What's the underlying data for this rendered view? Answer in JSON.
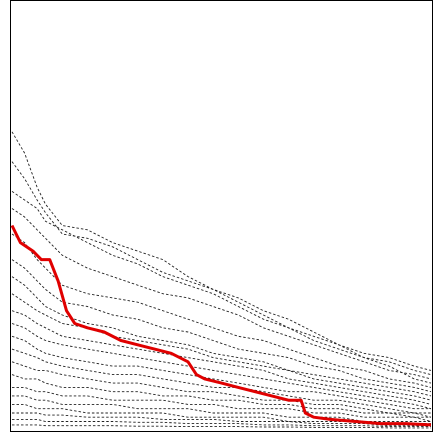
{
  "chart_data": {
    "type": "line",
    "title": "",
    "xlabel": "",
    "ylabel": "",
    "xlim": [
      0,
      100
    ],
    "ylim": [
      0,
      100
    ],
    "grid": false,
    "legend": "none",
    "tick_labels_shown": false,
    "colors": {
      "highlight": "#e00000",
      "background": "#222222",
      "frame": "#000000"
    },
    "highlight": {
      "x": [
        0,
        2,
        5,
        7,
        9,
        11,
        13,
        15,
        18,
        22,
        26,
        30,
        34,
        38,
        42,
        44,
        46,
        50,
        54,
        58,
        62,
        66,
        69,
        70,
        72,
        76,
        82,
        88,
        94,
        100
      ],
      "y": [
        48,
        44,
        42,
        40,
        40,
        35,
        28,
        25,
        24,
        23,
        21,
        20,
        19,
        18,
        16,
        13,
        12,
        11,
        10,
        9,
        8,
        7,
        7,
        4,
        3,
        2.5,
        2,
        1.5,
        1.5,
        1.2
      ]
    },
    "background_series": [
      {
        "x": [
          0,
          3,
          6,
          8,
          12,
          18,
          24,
          30,
          36,
          42,
          48,
          54,
          60,
          66,
          72,
          78,
          84,
          90,
          96,
          100
        ],
        "y": [
          70,
          65,
          57,
          53,
          48,
          47,
          44,
          42,
          40,
          36,
          33,
          31,
          28,
          26,
          23,
          20,
          18,
          17,
          15,
          14
        ]
      },
      {
        "x": [
          0,
          3,
          6,
          8,
          12,
          18,
          24,
          30,
          36,
          42,
          48,
          54,
          60,
          66,
          72,
          78,
          84,
          90,
          96,
          100
        ],
        "y": [
          63,
          59,
          54,
          51,
          46,
          45,
          43,
          40,
          37,
          35,
          33,
          30,
          27,
          24,
          22,
          20,
          17,
          15,
          12,
          11
        ]
      },
      {
        "x": [
          0,
          3,
          6,
          8,
          12,
          18,
          24,
          30,
          36,
          42,
          48,
          54,
          60,
          66,
          72,
          78,
          84,
          90,
          96,
          100
        ],
        "y": [
          56,
          54,
          52,
          49,
          47,
          44,
          41,
          39,
          36,
          34,
          32,
          29,
          26,
          24,
          21,
          19,
          17,
          16,
          14,
          13
        ]
      },
      {
        "x": [
          0,
          3,
          6,
          8,
          12,
          18,
          24,
          30,
          36,
          42,
          48,
          54,
          60,
          66,
          72,
          78,
          84,
          90,
          96,
          100
        ],
        "y": [
          52,
          50,
          47,
          45,
          41,
          38,
          36,
          34,
          32,
          31,
          29,
          27,
          24,
          22,
          20,
          18,
          16,
          14,
          13,
          12
        ]
      },
      {
        "x": [
          0,
          3,
          6,
          8,
          12,
          18,
          24,
          30,
          36,
          42,
          48,
          54,
          60,
          66,
          72,
          78,
          84,
          90,
          96,
          100
        ],
        "y": [
          46,
          44,
          40,
          38,
          34,
          32,
          31,
          30,
          28,
          26,
          24,
          22,
          21,
          19,
          17,
          15,
          14,
          12,
          11,
          10
        ]
      },
      {
        "x": [
          0,
          3,
          6,
          8,
          12,
          18,
          24,
          30,
          36,
          42,
          48,
          54,
          60,
          66,
          72,
          78,
          84,
          90,
          96,
          100
        ],
        "y": [
          40,
          38,
          35,
          33,
          30,
          29,
          27,
          26,
          24,
          23,
          21,
          19,
          18,
          17,
          15,
          14,
          12,
          11,
          10,
          9
        ]
      },
      {
        "x": [
          0,
          3,
          6,
          8,
          12,
          18,
          24,
          30,
          36,
          42,
          48,
          54,
          60,
          66,
          72,
          78,
          84,
          90,
          96,
          100
        ],
        "y": [
          36,
          34,
          31,
          29,
          27,
          25,
          24,
          22,
          21,
          20,
          18,
          17,
          16,
          14,
          13,
          12,
          11,
          10,
          9,
          8
        ]
      },
      {
        "x": [
          0,
          3,
          6,
          8,
          12,
          18,
          24,
          30,
          36,
          42,
          48,
          54,
          60,
          66,
          72,
          78,
          84,
          90,
          96,
          100
        ],
        "y": [
          32,
          30,
          28,
          27,
          25,
          24,
          22,
          21,
          20,
          19,
          17,
          16,
          15,
          14,
          12,
          11,
          10,
          9,
          8,
          7
        ]
      },
      {
        "x": [
          0,
          3,
          6,
          8,
          12,
          18,
          24,
          30,
          36,
          42,
          48,
          54,
          60,
          66,
          72,
          78,
          84,
          90,
          96,
          100
        ],
        "y": [
          28,
          27,
          25,
          24,
          22,
          21,
          20,
          19,
          18,
          17,
          16,
          15,
          14,
          12,
          11,
          10,
          9,
          8,
          7,
          6
        ]
      },
      {
        "x": [
          0,
          3,
          6,
          8,
          12,
          18,
          24,
          30,
          36,
          42,
          48,
          54,
          60,
          66,
          72,
          78,
          84,
          90,
          96,
          100
        ],
        "y": [
          25,
          24,
          22,
          21,
          20,
          19,
          18,
          17,
          16,
          15,
          14,
          13,
          12,
          11,
          10,
          9,
          8,
          7,
          6,
          5
        ]
      },
      {
        "x": [
          0,
          3,
          6,
          8,
          12,
          18,
          24,
          30,
          36,
          42,
          48,
          54,
          60,
          66,
          72,
          78,
          84,
          90,
          96,
          100
        ],
        "y": [
          22,
          21,
          19,
          18,
          17,
          16,
          15,
          15,
          14,
          13,
          12,
          11,
          10,
          9,
          9,
          8,
          7,
          6,
          5,
          5
        ]
      },
      {
        "x": [
          0,
          3,
          6,
          8,
          12,
          18,
          24,
          30,
          36,
          42,
          48,
          54,
          60,
          66,
          72,
          78,
          84,
          90,
          96,
          100
        ],
        "y": [
          19,
          18,
          17,
          16,
          15,
          14,
          13,
          13,
          12,
          11,
          10,
          10,
          9,
          8,
          7,
          7,
          6,
          5,
          4,
          4
        ]
      },
      {
        "x": [
          0,
          3,
          6,
          8,
          12,
          18,
          24,
          30,
          36,
          42,
          48,
          54,
          60,
          66,
          72,
          78,
          84,
          90,
          96,
          100
        ],
        "y": [
          16,
          15,
          14,
          14,
          13,
          12,
          11,
          11,
          10,
          9,
          9,
          8,
          7,
          7,
          6,
          6,
          5,
          4,
          4,
          3
        ]
      },
      {
        "x": [
          0,
          3,
          6,
          8,
          12,
          18,
          24,
          30,
          36,
          42,
          48,
          54,
          60,
          66,
          72,
          78,
          84,
          90,
          96,
          100
        ],
        "y": [
          13,
          12,
          12,
          11,
          10,
          10,
          9,
          9,
          8,
          8,
          7,
          7,
          6,
          6,
          5,
          5,
          4,
          4,
          3,
          3
        ]
      },
      {
        "x": [
          0,
          3,
          6,
          8,
          12,
          18,
          24,
          30,
          36,
          42,
          48,
          54,
          60,
          66,
          72,
          78,
          84,
          90,
          96,
          100
        ],
        "y": [
          10,
          10,
          9,
          9,
          8,
          8,
          7,
          7,
          7,
          6,
          6,
          5,
          5,
          5,
          4,
          4,
          3,
          3,
          3,
          2
        ]
      },
      {
        "x": [
          0,
          3,
          6,
          8,
          12,
          18,
          24,
          30,
          36,
          42,
          48,
          54,
          60,
          66,
          72,
          78,
          84,
          90,
          96,
          100
        ],
        "y": [
          8,
          8,
          7,
          7,
          6,
          6,
          6,
          5,
          5,
          5,
          4,
          4,
          4,
          3,
          3,
          3,
          2,
          2,
          2,
          2
        ]
      },
      {
        "x": [
          0,
          3,
          6,
          8,
          12,
          18,
          24,
          30,
          36,
          42,
          48,
          54,
          60,
          66,
          72,
          78,
          84,
          90,
          96,
          100
        ],
        "y": [
          6,
          6,
          5,
          5,
          5,
          4,
          4,
          4,
          4,
          3,
          3,
          3,
          3,
          2,
          2,
          2,
          2,
          1.5,
          1.5,
          1.5
        ]
      },
      {
        "x": [
          0,
          3,
          6,
          8,
          12,
          18,
          24,
          30,
          36,
          42,
          48,
          54,
          60,
          66,
          72,
          78,
          84,
          90,
          96,
          100
        ],
        "y": [
          4,
          4,
          4,
          3.5,
          3.5,
          3,
          3,
          3,
          2.5,
          2.5,
          2.5,
          2,
          2,
          2,
          1.5,
          1.5,
          1.5,
          1,
          1,
          1
        ]
      },
      {
        "x": [
          0,
          3,
          6,
          8,
          12,
          18,
          24,
          30,
          36,
          42,
          48,
          54,
          60,
          66,
          72,
          78,
          84,
          90,
          96,
          100
        ],
        "y": [
          2.5,
          2.5,
          2.5,
          2,
          2,
          2,
          2,
          1.8,
          1.8,
          1.5,
          1.5,
          1.5,
          1.2,
          1.2,
          1,
          1,
          1,
          0.8,
          0.8,
          0.8
        ]
      },
      {
        "x": [
          0,
          3,
          6,
          8,
          12,
          18,
          24,
          30,
          36,
          42,
          48,
          54,
          60,
          66,
          72,
          78,
          84,
          90,
          96,
          100
        ],
        "y": [
          1.2,
          1.2,
          1.2,
          1,
          1,
          1,
          1,
          0.9,
          0.9,
          0.8,
          0.8,
          0.8,
          0.7,
          0.7,
          0.6,
          0.6,
          0.6,
          0.5,
          0.5,
          0.5
        ]
      }
    ]
  }
}
